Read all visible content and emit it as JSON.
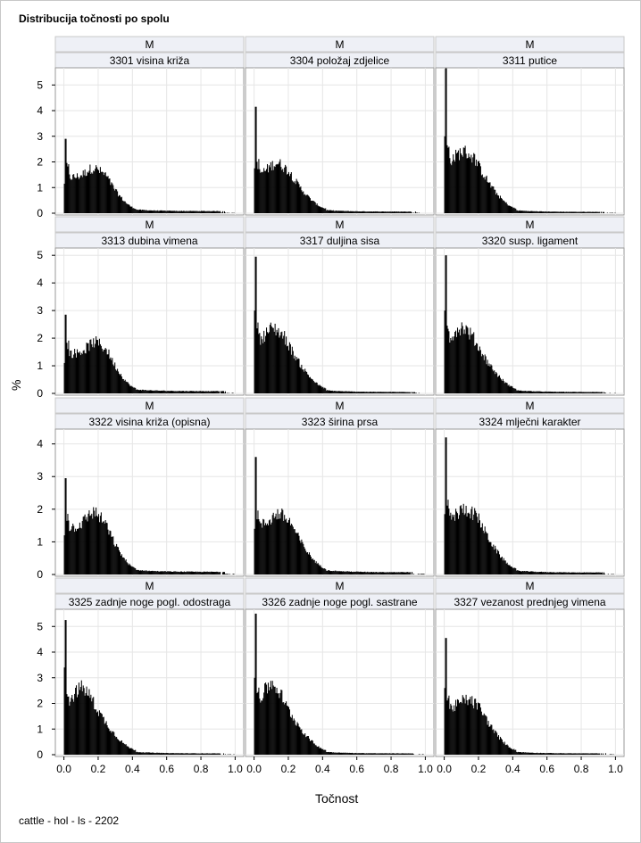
{
  "title": "Distribucija točnosti po spolu",
  "footnote": "cattle - hol - ls - 2202",
  "chart_data": {
    "type": "bar",
    "xlabel": "Točnost",
    "ylabel": "%",
    "xlim": [
      -0.05,
      1.05
    ],
    "xticks": [
      "0.0",
      "0.2",
      "0.4",
      "0.6",
      "0.8",
      "1.0"
    ],
    "grid": true,
    "legend": "none",
    "row_ylims": [
      [
        0,
        5.6
      ],
      [
        0,
        5.2
      ],
      [
        0,
        4.4
      ],
      [
        0,
        5.6
      ]
    ],
    "row_yticks": [
      [
        "0",
        "1",
        "2",
        "3",
        "4",
        "5"
      ],
      [
        "0",
        "1",
        "2",
        "3",
        "4",
        "5"
      ],
      [
        "0",
        "1",
        "2",
        "3",
        "4"
      ],
      [
        "0",
        "1",
        "2",
        "3",
        "4",
        "5"
      ]
    ],
    "panels": [
      {
        "sex": "M",
        "trait": "3301 visina križa",
        "peak": 2.9,
        "start": 1.15,
        "bump": 1.75,
        "bumpx": 0.17,
        "base": 1.4,
        "tail": 0.08
      },
      {
        "sex": "M",
        "trait": "3304 položaj zdjelice",
        "peak": 4.15,
        "start": 1.75,
        "bump": 1.95,
        "bumpx": 0.13,
        "base": 1.55,
        "tail": 0.06
      },
      {
        "sex": "M",
        "trait": "3311 putice",
        "peak": 5.65,
        "start": 3.0,
        "bump": 2.4,
        "bumpx": 0.11,
        "base": 2.0,
        "tail": 0.05
      },
      {
        "sex": "M",
        "trait": "3313 dubina vimena",
        "peak": 2.85,
        "start": 1.1,
        "bump": 1.85,
        "bumpx": 0.18,
        "base": 1.45,
        "tail": 0.08
      },
      {
        "sex": "M",
        "trait": "3317 duljina sisa",
        "peak": 4.95,
        "start": 3.0,
        "bump": 2.35,
        "bumpx": 0.11,
        "base": 1.9,
        "tail": 0.05
      },
      {
        "sex": "M",
        "trait": "3320 susp. ligament",
        "peak": 5.0,
        "start": 3.0,
        "bump": 2.4,
        "bumpx": 0.1,
        "base": 1.9,
        "tail": 0.05
      },
      {
        "sex": "M",
        "trait": "3322 visina križa (opisna)",
        "peak": 2.95,
        "start": 1.2,
        "bump": 1.9,
        "bumpx": 0.17,
        "base": 1.45,
        "tail": 0.08
      },
      {
        "sex": "M",
        "trait": "3323 širina prsa",
        "peak": 3.6,
        "start": 1.4,
        "bump": 1.85,
        "bumpx": 0.14,
        "base": 1.5,
        "tail": 0.07
      },
      {
        "sex": "M",
        "trait": "3324 mlječni karakter",
        "peak": 4.2,
        "start": 1.85,
        "bump": 2.0,
        "bumpx": 0.12,
        "base": 1.7,
        "tail": 0.06
      },
      {
        "sex": "M",
        "trait": "3325 zadnje noge pogl. odostraga",
        "peak": 5.25,
        "start": 3.4,
        "bump": 2.6,
        "bumpx": 0.1,
        "base": 1.95,
        "tail": 0.05
      },
      {
        "sex": "M",
        "trait": "3326 zadnje noge pogl. sastrane",
        "peak": 5.5,
        "start": 3.0,
        "bump": 2.75,
        "bumpx": 0.1,
        "base": 2.0,
        "tail": 0.05
      },
      {
        "sex": "M",
        "trait": "3327 vezanost prednjeg vimena",
        "peak": 4.55,
        "start": 2.6,
        "bump": 2.15,
        "bumpx": 0.13,
        "base": 1.8,
        "tail": 0.05
      }
    ]
  }
}
